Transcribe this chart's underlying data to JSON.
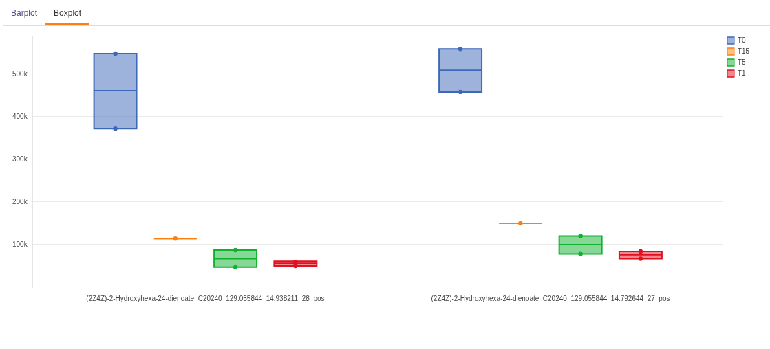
{
  "chart_data": {
    "type": "box",
    "categories": [
      "(2Z4Z)-2-Hydroxyhexa-24-dienoate_C20240_129.055844_14.938211_28_pos",
      "(2Z4Z)-2-Hydroxyhexa-24-dienoate_C20240_129.055844_14.792644_27_pos"
    ],
    "series": [
      {
        "name": "T0",
        "color": "#3d68b8",
        "boxes": [
          {
            "low": 372000,
            "q1": 372000,
            "median": 461000,
            "q3": 548000,
            "high": 548000,
            "outliers": [
              548000,
              372000
            ]
          },
          {
            "low": 458000,
            "q1": 458000,
            "median": 509000,
            "q3": 559000,
            "high": 559000,
            "outliers": [
              559000,
              458000
            ]
          }
        ]
      },
      {
        "name": "T15",
        "color": "#ff7f0e",
        "boxes": [
          {
            "low": 114000,
            "q1": 114000,
            "median": 114000,
            "q3": 114000,
            "high": 114000,
            "outliers": [
              114000
            ]
          },
          {
            "low": 150000,
            "q1": 150000,
            "median": 150000,
            "q3": 150000,
            "high": 150000,
            "outliers": [
              150000
            ]
          }
        ]
      },
      {
        "name": "T5",
        "color": "#10b12e",
        "boxes": [
          {
            "low": 47000,
            "q1": 47000,
            "median": 67000,
            "q3": 87000,
            "high": 87000,
            "outliers": [
              87000,
              47000
            ]
          },
          {
            "low": 78000,
            "q1": 78000,
            "median": 100000,
            "q3": 120000,
            "high": 120000,
            "outliers": [
              120000,
              78000
            ]
          }
        ]
      },
      {
        "name": "T1",
        "color": "#e0101e",
        "boxes": [
          {
            "low": 50000,
            "q1": 50000,
            "median": 56000,
            "q3": 61000,
            "high": 61000,
            "outliers": [
              59000,
              50000
            ]
          },
          {
            "low": 67000,
            "q1": 67000,
            "median": 76000,
            "q3": 84000,
            "high": 84000,
            "outliers": [
              84000,
              67000
            ]
          }
        ]
      }
    ],
    "ylim": [
      0,
      590000
    ],
    "yticks": [
      {
        "value": 100000,
        "label": "100k"
      },
      {
        "value": 200000,
        "label": "200k"
      },
      {
        "value": 300000,
        "label": "300k"
      },
      {
        "value": 400000,
        "label": "400k"
      },
      {
        "value": 500000,
        "label": "500k"
      }
    ],
    "grid": "y",
    "legend": "top right",
    "annotations": [
      "Barplot",
      "Boxplot"
    ]
  }
}
